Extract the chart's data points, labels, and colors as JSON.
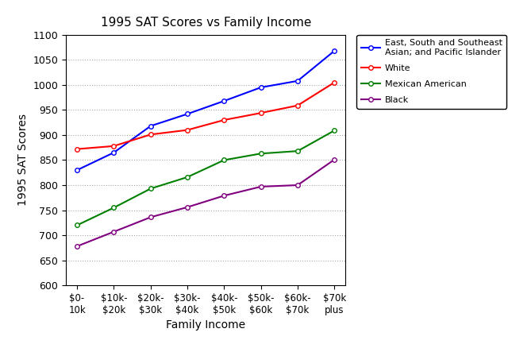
{
  "title": "1995 SAT Scores vs Family Income",
  "xlabel": "Family Income",
  "ylabel": "1995 SAT Scores",
  "x_labels": [
    "$0-\n10k",
    "$10k-\n$20k",
    "$20k-\n$30k",
    "$30k-\n$40k",
    "$40k-\n$50k",
    "$50k-\n$60k",
    "$60k-\n$70k",
    "$70k\nplus"
  ],
  "ylim": [
    600,
    1100
  ],
  "yticks": [
    600,
    650,
    700,
    750,
    800,
    850,
    900,
    950,
    1000,
    1050,
    1100
  ],
  "series": [
    {
      "label": "East, South and Southeast\nAsian; and Pacific Islander",
      "color": "#0000FF",
      "values": [
        830,
        865,
        918,
        942,
        968,
        995,
        1008,
        1068
      ]
    },
    {
      "label": "White",
      "color": "#FF0000",
      "values": [
        872,
        878,
        901,
        910,
        930,
        944,
        959,
        1005
      ]
    },
    {
      "label": "Mexican American",
      "color": "#008000",
      "values": [
        720,
        755,
        793,
        816,
        850,
        863,
        868,
        909
      ]
    },
    {
      "label": "Black",
      "color": "#800080",
      "values": [
        678,
        707,
        736,
        756,
        779,
        797,
        800,
        851
      ]
    }
  ],
  "legend_fontsize": 8,
  "axis_fontsize": 10,
  "title_fontsize": 11
}
